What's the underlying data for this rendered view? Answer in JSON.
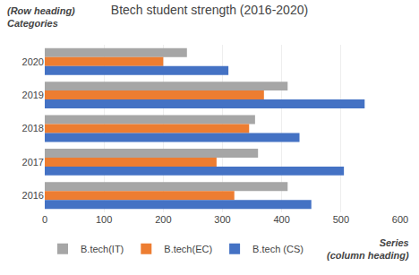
{
  "chart_data": {
    "type": "bar",
    "orientation": "horizontal",
    "title": "Btech student strength (2016-2020)",
    "categories": [
      "2020",
      "2019",
      "2018",
      "2017",
      "2016"
    ],
    "series": [
      {
        "name": "B.tech(IT)",
        "color": "#a6a6a6",
        "values": [
          240,
          410,
          355,
          360,
          410
        ]
      },
      {
        "name": "B.tech(EC)",
        "color": "#ed7d31",
        "values": [
          200,
          370,
          345,
          290,
          320
        ]
      },
      {
        "name": "B.tech (CS)",
        "color": "#4472c4",
        "values": [
          310,
          540,
          430,
          505,
          450
        ]
      }
    ],
    "xlim": [
      0,
      600
    ],
    "xticks": [
      0,
      100,
      200,
      300,
      400,
      500,
      600
    ],
    "grid": true,
    "legend": "bottom",
    "annotations": [
      "(Row heading)",
      "Categories",
      "Series",
      "(column heading)"
    ]
  }
}
